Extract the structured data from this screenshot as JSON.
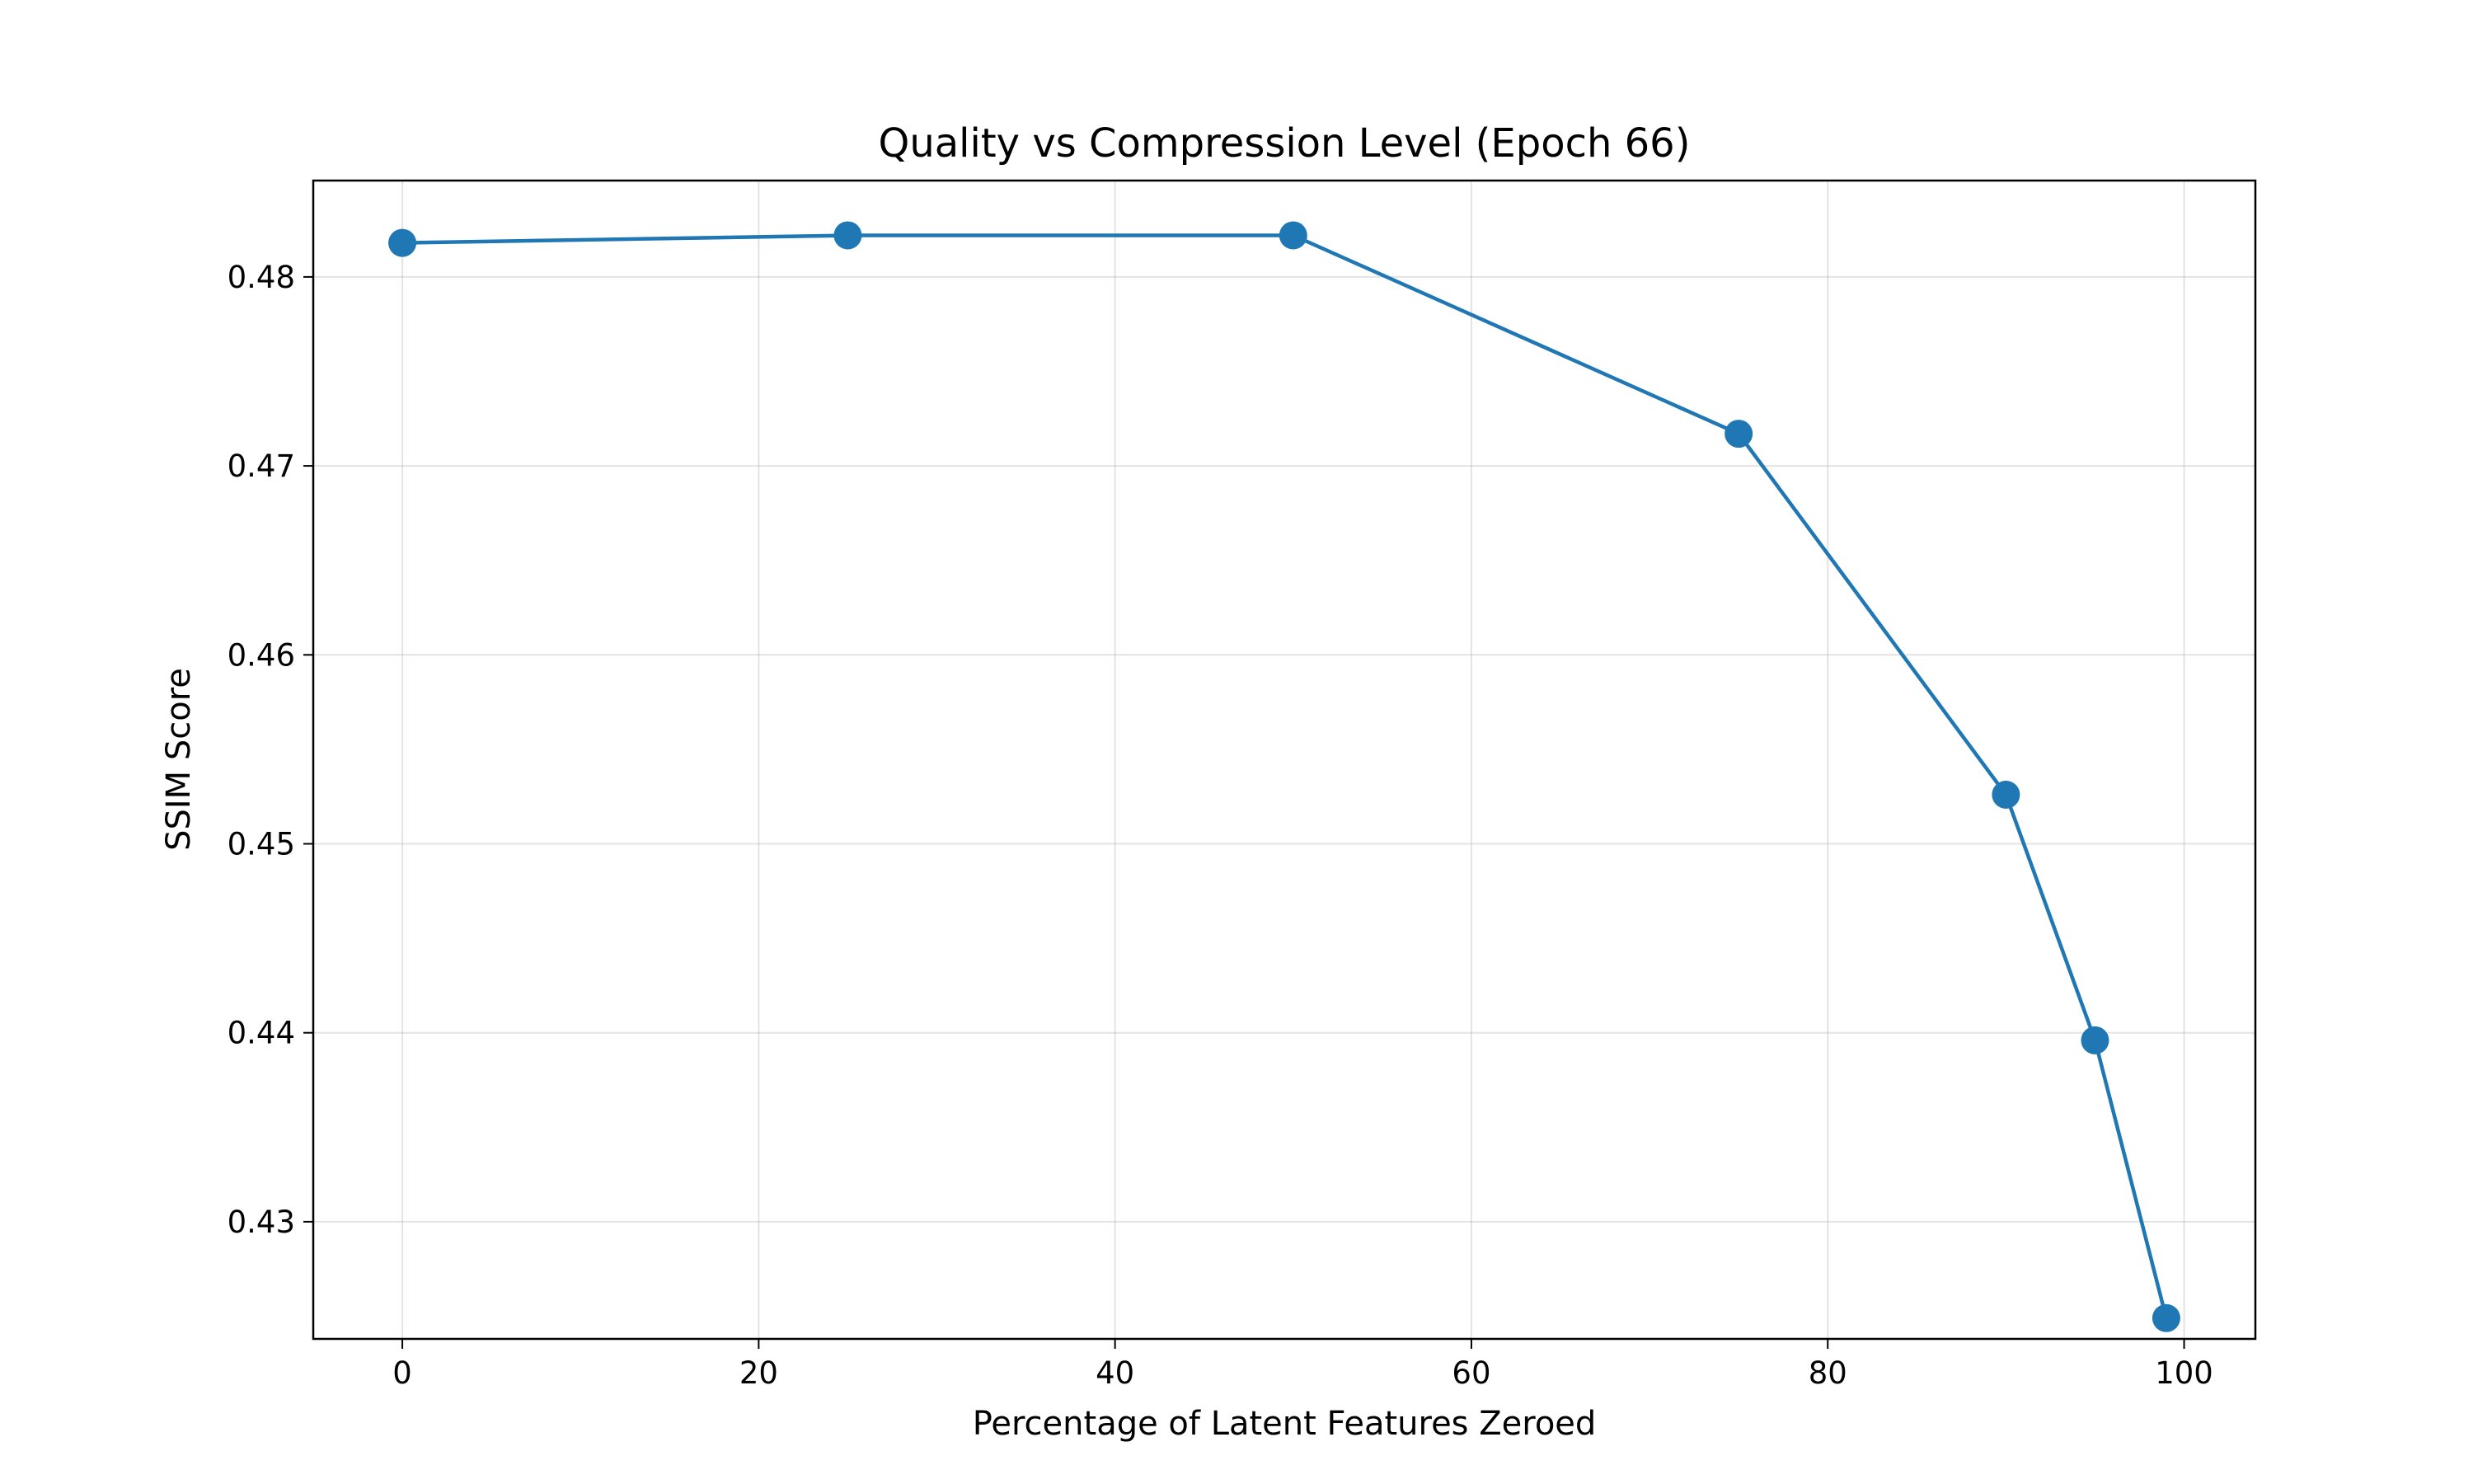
{
  "chart_data": {
    "type": "line",
    "title": "Quality vs Compression Level (Epoch 66)",
    "xlabel": "Percentage of Latent Features Zeroed",
    "ylabel": "SSIM Score",
    "xlim": [
      -5,
      104
    ],
    "ylim": [
      0.4238,
      0.4851
    ],
    "xticks": [
      0,
      20,
      40,
      60,
      80,
      100
    ],
    "yticks": [
      0.43,
      0.44,
      0.45,
      0.46,
      0.47,
      0.48
    ],
    "xtick_labels": [
      "0",
      "20",
      "40",
      "60",
      "80",
      "100"
    ],
    "ytick_labels": [
      "0.43",
      "0.44",
      "0.45",
      "0.46",
      "0.47",
      "0.48"
    ],
    "grid": true,
    "legend": false,
    "series": [
      {
        "color": "#1f77b4",
        "marker": "circle",
        "x": [
          0,
          25,
          50,
          75,
          90,
          95,
          99
        ],
        "y": [
          0.4818,
          0.4822,
          0.4822,
          0.4717,
          0.4526,
          0.4396,
          0.4249
        ]
      }
    ]
  }
}
